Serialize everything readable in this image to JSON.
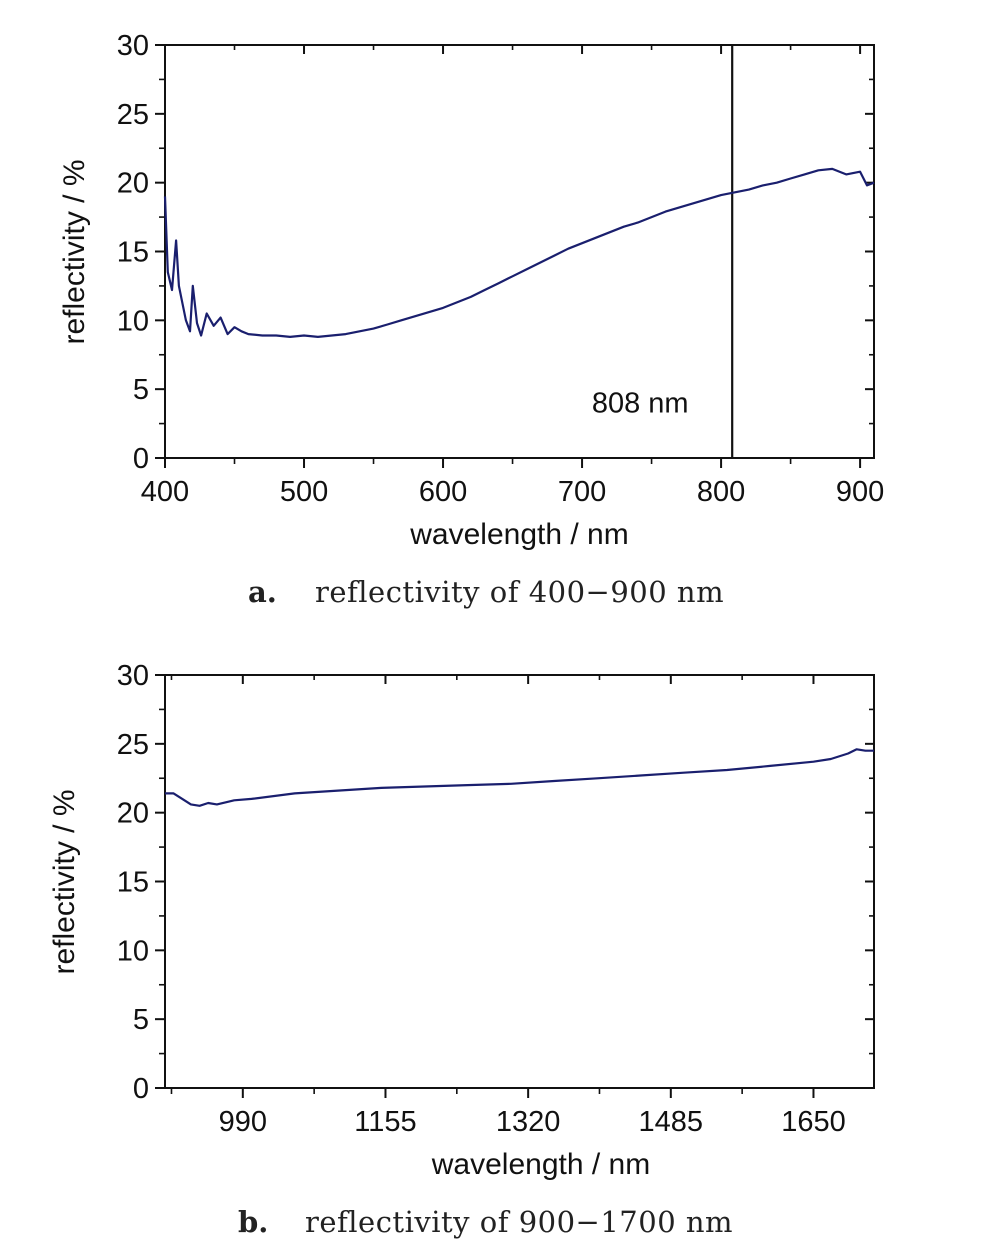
{
  "chart_data": [
    {
      "type": "line",
      "caption_letter": "a.",
      "caption_text": "reflectivity of 400−900 nm",
      "xlabel": "wavelength / nm",
      "ylabel": "reflectivity / %",
      "xlim": [
        400,
        910
      ],
      "ylim": [
        0,
        30
      ],
      "xticks": [
        400,
        500,
        600,
        700,
        800,
        900
      ],
      "yticks": [
        0,
        5,
        10,
        15,
        20,
        25,
        30
      ],
      "line_color": "#1a1f6e",
      "annotation": {
        "text": "808 nm",
        "x": 808
      },
      "series": [
        {
          "x": [
            400,
            402,
            405,
            408,
            410,
            412,
            415,
            418,
            420,
            423,
            426,
            430,
            435,
            440,
            445,
            450,
            455,
            460,
            470,
            480,
            490,
            500,
            510,
            520,
            530,
            540,
            550,
            560,
            570,
            580,
            590,
            600,
            610,
            620,
            630,
            640,
            650,
            660,
            670,
            680,
            690,
            700,
            710,
            720,
            730,
            740,
            750,
            760,
            770,
            780,
            790,
            800,
            810,
            820,
            830,
            840,
            850,
            860,
            870,
            880,
            890,
            900,
            905,
            910
          ],
          "y": [
            19.0,
            13.5,
            12.2,
            15.8,
            12.5,
            11.5,
            10.0,
            9.2,
            12.5,
            9.8,
            8.9,
            10.5,
            9.6,
            10.2,
            9.0,
            9.5,
            9.2,
            9.0,
            8.9,
            8.9,
            8.8,
            8.9,
            8.8,
            8.9,
            9.0,
            9.2,
            9.4,
            9.7,
            10.0,
            10.3,
            10.6,
            10.9,
            11.3,
            11.7,
            12.2,
            12.7,
            13.2,
            13.7,
            14.2,
            14.7,
            15.2,
            15.6,
            16.0,
            16.4,
            16.8,
            17.1,
            17.5,
            17.9,
            18.2,
            18.5,
            18.8,
            19.1,
            19.3,
            19.5,
            19.8,
            20.0,
            20.3,
            20.6,
            20.9,
            21.0,
            20.6,
            20.8,
            19.8,
            20.0
          ]
        }
      ]
    },
    {
      "type": "line",
      "caption_letter": "b.",
      "caption_text": "reflectivity of 900−1700 nm",
      "xlabel": "wavelength / nm",
      "ylabel": "reflectivity / %",
      "xlim": [
        900,
        1720
      ],
      "ylim": [
        0,
        30
      ],
      "xticks": [
        990,
        1155,
        1320,
        1485,
        1650
      ],
      "yticks": [
        0,
        5,
        10,
        15,
        20,
        25,
        30
      ],
      "line_color": "#1a1f6e",
      "series": [
        {
          "x": [
            900,
            910,
            920,
            930,
            940,
            950,
            960,
            980,
            1000,
            1050,
            1100,
            1150,
            1200,
            1250,
            1300,
            1350,
            1400,
            1450,
            1500,
            1550,
            1600,
            1650,
            1670,
            1690,
            1700,
            1710,
            1720
          ],
          "y": [
            21.4,
            21.4,
            21.0,
            20.6,
            20.5,
            20.7,
            20.6,
            20.9,
            21.0,
            21.4,
            21.6,
            21.8,
            21.9,
            22.0,
            22.1,
            22.3,
            22.5,
            22.7,
            22.9,
            23.1,
            23.4,
            23.7,
            23.9,
            24.3,
            24.6,
            24.5,
            24.5
          ]
        }
      ]
    }
  ]
}
